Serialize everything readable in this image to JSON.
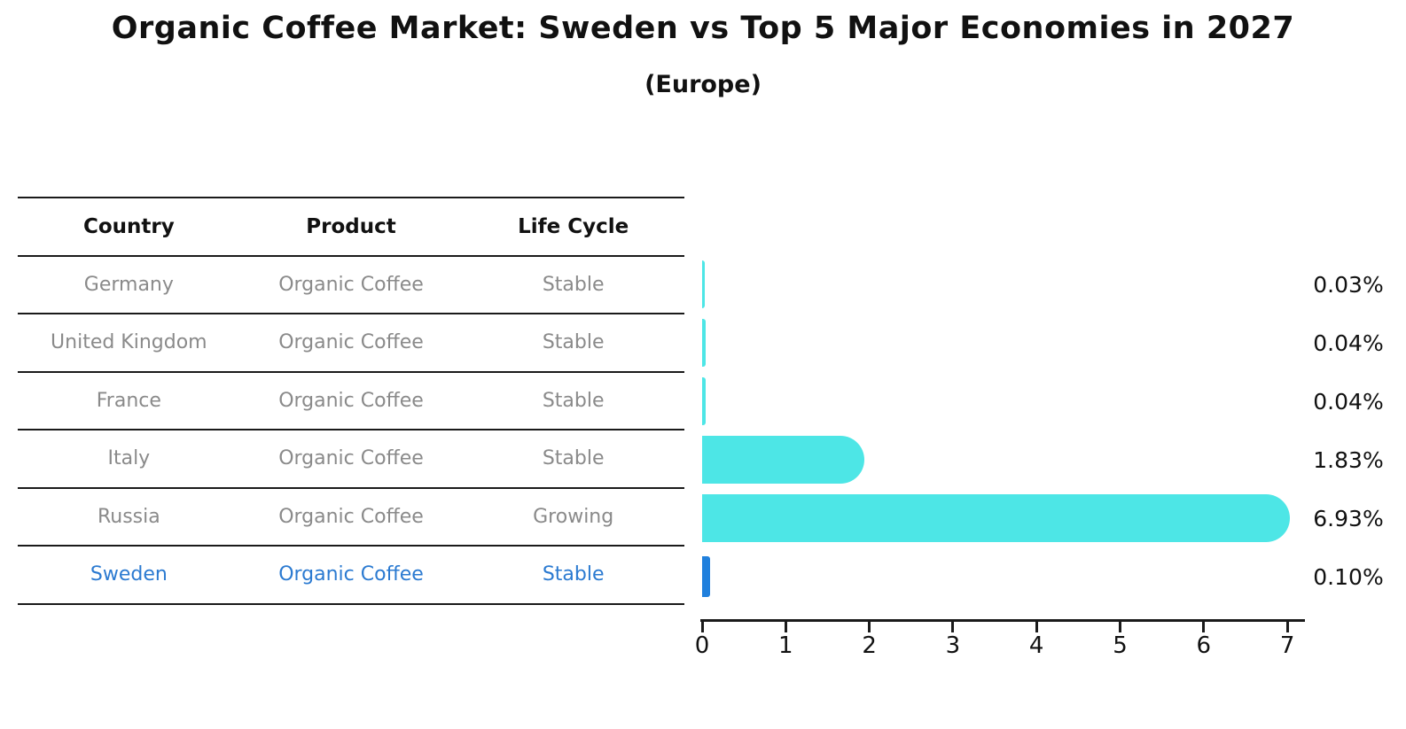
{
  "title": "Organic Coffee Market: Sweden vs Top 5 Major Economies in 2027",
  "subtitle": "(Europe)",
  "table": {
    "headers": [
      "Country",
      "Product",
      "Life Cycle"
    ],
    "rows": [
      {
        "country": "Germany",
        "product": "Organic Coffee",
        "life_cycle": "Stable",
        "highlighted": false
      },
      {
        "country": "United Kingdom",
        "product": "Organic Coffee",
        "life_cycle": "Stable",
        "highlighted": false
      },
      {
        "country": "France",
        "product": "Organic Coffee",
        "life_cycle": "Stable",
        "highlighted": false
      },
      {
        "country": "Italy",
        "product": "Organic Coffee",
        "life_cycle": "Stable",
        "highlighted": false
      },
      {
        "country": "Russia",
        "product": "Organic Coffee",
        "life_cycle": "Growing",
        "highlighted": false
      },
      {
        "country": "Sweden",
        "product": "Organic Coffee",
        "life_cycle": "Stable",
        "highlighted": true
      }
    ]
  },
  "chart_data": {
    "type": "bar",
    "orientation": "horizontal",
    "title": "Organic Coffee Market: Sweden vs Top 5 Major Economies in 2027",
    "subtitle": "(Europe)",
    "categories": [
      "Germany",
      "United Kingdom",
      "France",
      "Italy",
      "Russia",
      "Sweden"
    ],
    "values": [
      0.03,
      0.04,
      0.04,
      1.83,
      6.93,
      0.1
    ],
    "value_labels": [
      "0.03%",
      "0.04%",
      "0.04%",
      "1.83%",
      "6.93%",
      "0.10%"
    ],
    "x_tick_labels": [
      "0",
      "1",
      "2",
      "3",
      "4",
      "5",
      "6",
      "7"
    ],
    "xlim": [
      0,
      7.3
    ],
    "xlabel": "",
    "ylabel": "",
    "grid": false,
    "legend": "none",
    "bar_color": "#4DE6E6",
    "highlight_color": "#2080DD",
    "highlight_index": 5,
    "highlight_text_color": "#2b7ad1"
  }
}
